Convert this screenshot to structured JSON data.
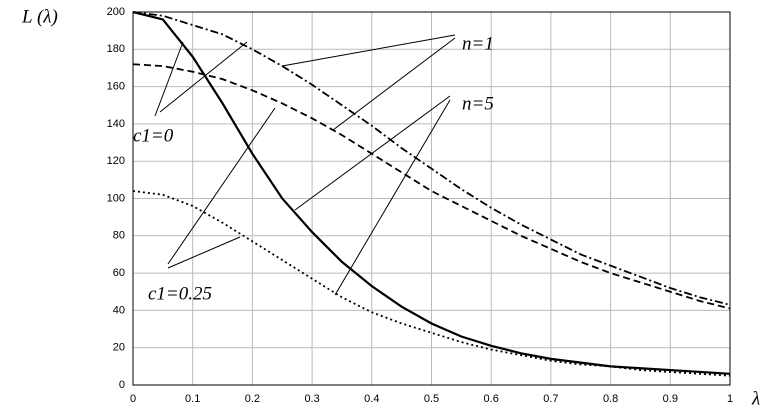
{
  "chart_data": {
    "type": "line",
    "x_label": "λ",
    "y_label": "L (λ)",
    "annotations": [
      "n=1",
      "n=5",
      "c1=0",
      "c1=0.25"
    ],
    "x": [
      0,
      0.05,
      0.1,
      0.15,
      0.2,
      0.25,
      0.3,
      0.35,
      0.4,
      0.45,
      0.5,
      0.55,
      0.6,
      0.65,
      0.7,
      0.75,
      0.8,
      0.85,
      0.9,
      0.95,
      1
    ],
    "series": [
      {
        "color": "#000000",
        "linestyle": "dashdot",
        "values": [
          200,
          198,
          193,
          188,
          180,
          171,
          161,
          150,
          139,
          127,
          116,
          105,
          95,
          86,
          78,
          70,
          64,
          58,
          52,
          47,
          43
        ]
      },
      {
        "color": "#000000",
        "linestyle": "dashed",
        "values": [
          172,
          171,
          168,
          164,
          158,
          151,
          143,
          134,
          124,
          114,
          104,
          96,
          88,
          80,
          73,
          66,
          60,
          55,
          50,
          45,
          41
        ]
      },
      {
        "color": "#000000",
        "linestyle": "solid",
        "values": [
          200,
          196,
          176,
          151,
          124,
          100,
          82,
          66,
          53,
          42,
          33,
          26,
          21,
          17,
          14,
          12,
          10,
          9,
          8,
          7,
          6
        ]
      },
      {
        "color": "#000000",
        "linestyle": "dotted",
        "values": [
          104,
          102,
          96,
          87,
          77,
          67,
          57,
          47,
          39,
          33,
          28,
          23,
          19,
          16,
          13,
          11,
          10,
          8,
          7,
          6,
          5
        ]
      }
    ],
    "xlim": [
      0,
      1
    ],
    "xticks": [
      0,
      0.1,
      0.2,
      0.3,
      0.4,
      0.5,
      0.6,
      0.7,
      0.8,
      0.9,
      1
    ],
    "ylim": [
      0,
      200
    ],
    "yticks": [
      0,
      20,
      40,
      60,
      80,
      100,
      120,
      140,
      160,
      180,
      200
    ],
    "grid": true
  }
}
